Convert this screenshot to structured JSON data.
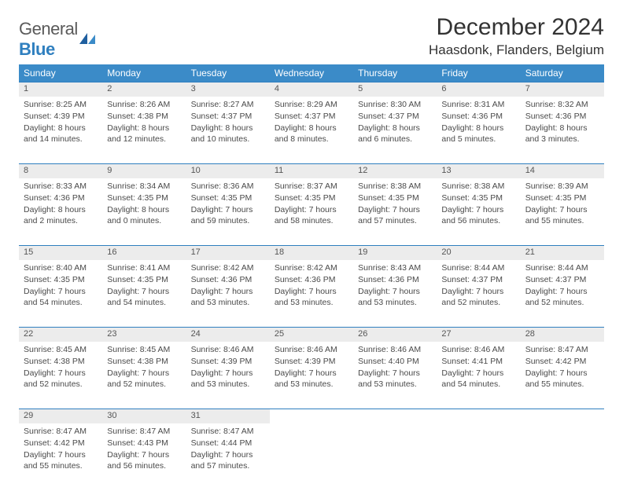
{
  "logo": {
    "text1": "General",
    "text2": "Blue"
  },
  "title": "December 2024",
  "location": "Haasdonk, Flanders, Belgium",
  "colors": {
    "header_bg": "#3b8bc8",
    "header_fg": "#ffffff",
    "daynum_bg": "#ececec",
    "border": "#2f7fbf",
    "text": "#333333",
    "body_text": "#4a4a4a",
    "logo_gray": "#5a5a5a",
    "logo_blue": "#2f7fbf"
  },
  "typography": {
    "title_fontsize": 30,
    "location_fontsize": 17,
    "dow_fontsize": 12,
    "daynum_fontsize": 11,
    "cell_fontsize": 10.5
  },
  "dow": [
    "Sunday",
    "Monday",
    "Tuesday",
    "Wednesday",
    "Thursday",
    "Friday",
    "Saturday"
  ],
  "weeks": [
    [
      {
        "n": "1",
        "sr": "Sunrise: 8:25 AM",
        "ss": "Sunset: 4:39 PM",
        "dl": "Daylight: 8 hours and 14 minutes."
      },
      {
        "n": "2",
        "sr": "Sunrise: 8:26 AM",
        "ss": "Sunset: 4:38 PM",
        "dl": "Daylight: 8 hours and 12 minutes."
      },
      {
        "n": "3",
        "sr": "Sunrise: 8:27 AM",
        "ss": "Sunset: 4:37 PM",
        "dl": "Daylight: 8 hours and 10 minutes."
      },
      {
        "n": "4",
        "sr": "Sunrise: 8:29 AM",
        "ss": "Sunset: 4:37 PM",
        "dl": "Daylight: 8 hours and 8 minutes."
      },
      {
        "n": "5",
        "sr": "Sunrise: 8:30 AM",
        "ss": "Sunset: 4:37 PM",
        "dl": "Daylight: 8 hours and 6 minutes."
      },
      {
        "n": "6",
        "sr": "Sunrise: 8:31 AM",
        "ss": "Sunset: 4:36 PM",
        "dl": "Daylight: 8 hours and 5 minutes."
      },
      {
        "n": "7",
        "sr": "Sunrise: 8:32 AM",
        "ss": "Sunset: 4:36 PM",
        "dl": "Daylight: 8 hours and 3 minutes."
      }
    ],
    [
      {
        "n": "8",
        "sr": "Sunrise: 8:33 AM",
        "ss": "Sunset: 4:36 PM",
        "dl": "Daylight: 8 hours and 2 minutes."
      },
      {
        "n": "9",
        "sr": "Sunrise: 8:34 AM",
        "ss": "Sunset: 4:35 PM",
        "dl": "Daylight: 8 hours and 0 minutes."
      },
      {
        "n": "10",
        "sr": "Sunrise: 8:36 AM",
        "ss": "Sunset: 4:35 PM",
        "dl": "Daylight: 7 hours and 59 minutes."
      },
      {
        "n": "11",
        "sr": "Sunrise: 8:37 AM",
        "ss": "Sunset: 4:35 PM",
        "dl": "Daylight: 7 hours and 58 minutes."
      },
      {
        "n": "12",
        "sr": "Sunrise: 8:38 AM",
        "ss": "Sunset: 4:35 PM",
        "dl": "Daylight: 7 hours and 57 minutes."
      },
      {
        "n": "13",
        "sr": "Sunrise: 8:38 AM",
        "ss": "Sunset: 4:35 PM",
        "dl": "Daylight: 7 hours and 56 minutes."
      },
      {
        "n": "14",
        "sr": "Sunrise: 8:39 AM",
        "ss": "Sunset: 4:35 PM",
        "dl": "Daylight: 7 hours and 55 minutes."
      }
    ],
    [
      {
        "n": "15",
        "sr": "Sunrise: 8:40 AM",
        "ss": "Sunset: 4:35 PM",
        "dl": "Daylight: 7 hours and 54 minutes."
      },
      {
        "n": "16",
        "sr": "Sunrise: 8:41 AM",
        "ss": "Sunset: 4:35 PM",
        "dl": "Daylight: 7 hours and 54 minutes."
      },
      {
        "n": "17",
        "sr": "Sunrise: 8:42 AM",
        "ss": "Sunset: 4:36 PM",
        "dl": "Daylight: 7 hours and 53 minutes."
      },
      {
        "n": "18",
        "sr": "Sunrise: 8:42 AM",
        "ss": "Sunset: 4:36 PM",
        "dl": "Daylight: 7 hours and 53 minutes."
      },
      {
        "n": "19",
        "sr": "Sunrise: 8:43 AM",
        "ss": "Sunset: 4:36 PM",
        "dl": "Daylight: 7 hours and 53 minutes."
      },
      {
        "n": "20",
        "sr": "Sunrise: 8:44 AM",
        "ss": "Sunset: 4:37 PM",
        "dl": "Daylight: 7 hours and 52 minutes."
      },
      {
        "n": "21",
        "sr": "Sunrise: 8:44 AM",
        "ss": "Sunset: 4:37 PM",
        "dl": "Daylight: 7 hours and 52 minutes."
      }
    ],
    [
      {
        "n": "22",
        "sr": "Sunrise: 8:45 AM",
        "ss": "Sunset: 4:38 PM",
        "dl": "Daylight: 7 hours and 52 minutes."
      },
      {
        "n": "23",
        "sr": "Sunrise: 8:45 AM",
        "ss": "Sunset: 4:38 PM",
        "dl": "Daylight: 7 hours and 52 minutes."
      },
      {
        "n": "24",
        "sr": "Sunrise: 8:46 AM",
        "ss": "Sunset: 4:39 PM",
        "dl": "Daylight: 7 hours and 53 minutes."
      },
      {
        "n": "25",
        "sr": "Sunrise: 8:46 AM",
        "ss": "Sunset: 4:39 PM",
        "dl": "Daylight: 7 hours and 53 minutes."
      },
      {
        "n": "26",
        "sr": "Sunrise: 8:46 AM",
        "ss": "Sunset: 4:40 PM",
        "dl": "Daylight: 7 hours and 53 minutes."
      },
      {
        "n": "27",
        "sr": "Sunrise: 8:46 AM",
        "ss": "Sunset: 4:41 PM",
        "dl": "Daylight: 7 hours and 54 minutes."
      },
      {
        "n": "28",
        "sr": "Sunrise: 8:47 AM",
        "ss": "Sunset: 4:42 PM",
        "dl": "Daylight: 7 hours and 55 minutes."
      }
    ],
    [
      {
        "n": "29",
        "sr": "Sunrise: 8:47 AM",
        "ss": "Sunset: 4:42 PM",
        "dl": "Daylight: 7 hours and 55 minutes."
      },
      {
        "n": "30",
        "sr": "Sunrise: 8:47 AM",
        "ss": "Sunset: 4:43 PM",
        "dl": "Daylight: 7 hours and 56 minutes."
      },
      {
        "n": "31",
        "sr": "Sunrise: 8:47 AM",
        "ss": "Sunset: 4:44 PM",
        "dl": "Daylight: 7 hours and 57 minutes."
      },
      null,
      null,
      null,
      null
    ]
  ]
}
